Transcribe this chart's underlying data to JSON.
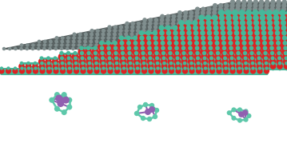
{
  "bg_color": "#ffffff",
  "graphene_color": "#808e8e",
  "graphene_bond_color": "#555f5f",
  "graphene_dopant_color": "#e070a0",
  "mos2_mo_color": "#dd2222",
  "mos2_s_color": "#45b89a",
  "poly_ring_color": "#5ec8aa",
  "poly_mo_color": "#9060b0",
  "poly_bond_color": "#5ec8aa",
  "poly_mo_bond_color": "#9060b0"
}
